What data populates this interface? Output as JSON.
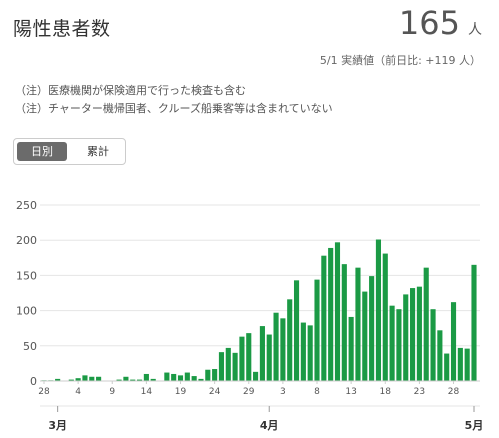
{
  "header": {
    "title": "陽性患者数",
    "value": "165",
    "unit": "人",
    "subline": "5/1 実績値（前日比: +119 人）"
  },
  "notes": [
    "（注）医療機関が保険適用で行った検査も含む",
    "（注）チャーター機帰国者、クルーズ船乗客等は含まれていない"
  ],
  "toggle": {
    "daily": "日別",
    "cumulative": "累計",
    "selected": "daily"
  },
  "colors": {
    "bar": "#1b9a45",
    "grid": "#e5e5e5",
    "axis": "#cccccc",
    "text": "#555555"
  },
  "chart_data": {
    "type": "bar",
    "ylim": [
      0,
      250
    ],
    "yticks": [
      0,
      50,
      100,
      150,
      200,
      250
    ],
    "grid": true,
    "xtick_labels": [
      "28",
      "4",
      "9",
      "14",
      "19",
      "24",
      "29",
      "3",
      "8",
      "13",
      "18",
      "23",
      "28"
    ],
    "xtick_every": 5,
    "month_labels": [
      {
        "label": "3月",
        "category": "3/1"
      },
      {
        "label": "4月",
        "category": "4/1"
      },
      {
        "label": "5月",
        "category": "5/1"
      }
    ],
    "categories": [
      "2/28",
      "2/29",
      "3/1",
      "3/2",
      "3/3",
      "3/4",
      "3/5",
      "3/6",
      "3/7",
      "3/8",
      "3/9",
      "3/10",
      "3/11",
      "3/12",
      "3/13",
      "3/14",
      "3/15",
      "3/16",
      "3/17",
      "3/18",
      "3/19",
      "3/20",
      "3/21",
      "3/22",
      "3/23",
      "3/24",
      "3/25",
      "3/26",
      "3/27",
      "3/28",
      "3/29",
      "3/30",
      "3/31",
      "4/1",
      "4/2",
      "4/3",
      "4/4",
      "4/5",
      "4/6",
      "4/7",
      "4/8",
      "4/9",
      "4/10",
      "4/11",
      "4/12",
      "4/13",
      "4/14",
      "4/15",
      "4/16",
      "4/17",
      "4/18",
      "4/19",
      "4/20",
      "4/21",
      "4/22",
      "4/23",
      "4/24",
      "4/25",
      "4/26",
      "4/27",
      "4/28",
      "4/29",
      "4/30",
      "5/1"
    ],
    "values": [
      1,
      1,
      3,
      0,
      2,
      4,
      8,
      6,
      6,
      0,
      0,
      2,
      6,
      2,
      2,
      10,
      3,
      0,
      12,
      10,
      8,
      12,
      7,
      3,
      16,
      17,
      41,
      47,
      40,
      63,
      68,
      13,
      78,
      66,
      97,
      89,
      116,
      143,
      83,
      79,
      144,
      178,
      189,
      197,
      166,
      91,
      161,
      127,
      149,
      201,
      181,
      107,
      102,
      123,
      132,
      134,
      161,
      102,
      72,
      39,
      112,
      47,
      46,
      165
    ]
  }
}
